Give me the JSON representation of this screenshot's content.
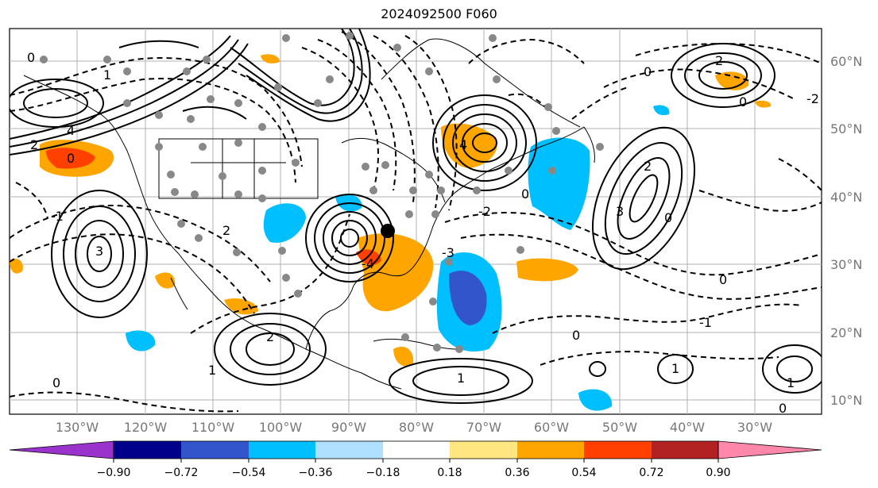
{
  "title": "2024092500 F060",
  "lat_labels": [
    "60°N",
    "50°N",
    "40°N",
    "30°N",
    "20°N",
    "10°N"
  ],
  "lon_labels": [
    "130°W",
    "120°W",
    "110°W",
    "100°W",
    "90°W",
    "80°W",
    "70°W",
    "60°W",
    "50°W",
    "40°W",
    "30°W"
  ],
  "contour_labels": [
    "0",
    "1",
    "2",
    "3",
    "4",
    "-1",
    "-2",
    "-3",
    "-4"
  ],
  "colorbar": {
    "colors": [
      "#9933cc",
      "#00008b",
      "#3355cc",
      "#00bfff",
      "#b0e0ff",
      "#ffffff",
      "#ffe680",
      "#ffa500",
      "#ff4000",
      "#b22222",
      "#ff88aa"
    ],
    "tick_labels": [
      "−0.90",
      "−0.72",
      "−0.54",
      "−0.36",
      "−0.18",
      "0.18",
      "0.36",
      "0.54",
      "0.72",
      "0.90"
    ]
  },
  "storm_marker": "tropical-cyclone-center"
}
